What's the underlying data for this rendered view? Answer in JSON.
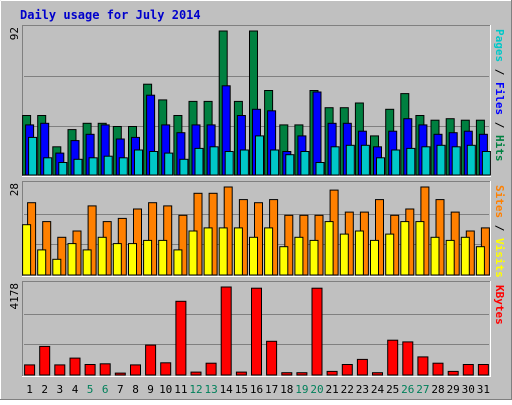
{
  "chart_data": {
    "type": "bar",
    "title": "Daily usage for July 2014",
    "days": [
      "1",
      "2",
      "3",
      "4",
      "5",
      "6",
      "7",
      "8",
      "9",
      "10",
      "11",
      "12",
      "13",
      "14",
      "15",
      "16",
      "17",
      "18",
      "19",
      "20",
      "21",
      "22",
      "23",
      "24",
      "25",
      "26",
      "27",
      "28",
      "29",
      "30",
      "31"
    ],
    "weekend_days": [
      "5",
      "6",
      "12",
      "13",
      "19",
      "20",
      "26",
      "27"
    ],
    "panels": [
      {
        "id": "hits",
        "max_label": "92",
        "ymax": 92,
        "ylabel_parts": [
          {
            "text": "Pages",
            "color": "#00c8c8"
          },
          {
            "text": " / ",
            "color": "#000000"
          },
          {
            "text": "Files",
            "color": "#0000ff"
          },
          {
            "text": " / ",
            "color": "#000000"
          },
          {
            "text": "Hits",
            "color": "#008040"
          }
        ],
        "series": [
          {
            "color": "#008040",
            "values": [
              38,
              38,
              18,
              29,
              33,
              33,
              31,
              31,
              58,
              48,
              38,
              47,
              47,
              92,
              47,
              92,
              54,
              32,
              32,
              54,
              43,
              43,
              46,
              25,
              42,
              52,
              38,
              35,
              36,
              35,
              35
            ]
          },
          {
            "color": "#0000ff",
            "values": [
              32,
              33,
              14,
              22,
              26,
              32,
              23,
              24,
              51,
              32,
              27,
              32,
              32,
              57,
              38,
              42,
              41,
              15,
              25,
              53,
              33,
              33,
              28,
              18,
              28,
              36,
              32,
              26,
              27,
              28,
              26
            ]
          },
          {
            "color": "#00c8c8",
            "values": [
              24,
              11,
              8,
              10,
              11,
              12,
              11,
              16,
              15,
              14,
              10,
              17,
              18,
              15,
              16,
              25,
              16,
              13,
              15,
              8,
              18,
              19,
              19,
              11,
              16,
              17,
              18,
              19,
              18,
              19,
              15
            ]
          }
        ]
      },
      {
        "id": "visits",
        "max_label": "28",
        "ymax": 28,
        "ylabel_parts": [
          {
            "text": "Sites",
            "color": "#ff8000"
          },
          {
            "text": " / ",
            "color": "#000000"
          },
          {
            "text": "Visits",
            "color": "#ffff00"
          }
        ],
        "series": [
          {
            "color": "#ff8000",
            "values": [
              23,
              17,
              12,
              14,
              22,
              17,
              18,
              21,
              23,
              22,
              19,
              26,
              26,
              28,
              24,
              23,
              24,
              19,
              19,
              19,
              27,
              20,
              20,
              24,
              19,
              21,
              28,
              24,
              20,
              14,
              15
            ]
          },
          {
            "color": "#ffff00",
            "values": [
              16,
              8,
              5,
              10,
              8,
              12,
              10,
              10,
              11,
              11,
              8,
              14,
              15,
              15,
              15,
              12,
              15,
              9,
              12,
              11,
              17,
              13,
              14,
              11,
              13,
              17,
              17,
              12,
              11,
              12,
              9
            ]
          }
        ]
      },
      {
        "id": "kbytes",
        "max_label": "4178",
        "ymax": 4178,
        "ylabel_parts": [
          {
            "text": "KBytes",
            "color": "#ff0000"
          }
        ],
        "series": [
          {
            "color": "#ff0000",
            "values": [
              480,
              1360,
              480,
              800,
              500,
              530,
              90,
              480,
              1420,
              580,
              3500,
              140,
              560,
              4178,
              140,
              4120,
              1600,
              110,
              110,
              4120,
              170,
              500,
              740,
              110,
              1650,
              1570,
              860,
              560,
              170,
              500,
              500
            ]
          }
        ]
      }
    ],
    "legend": "right-vertical",
    "grid": true
  }
}
